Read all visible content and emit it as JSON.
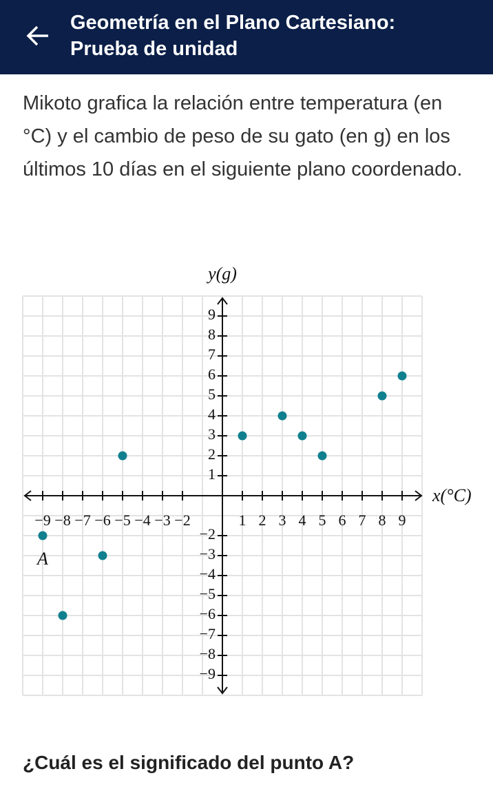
{
  "header": {
    "title": "Geometría en el Plano Cartesiano: Prueba de unidad"
  },
  "question": {
    "text": "Mikoto grafica la relación entre temperatura (en °C) y el cambio de peso de su gato (en g) en los últimos 10 días en el siguiente plano coordenado.",
    "prompt": "¿Cuál es el significado del punto A?"
  },
  "chart_data": {
    "type": "scatter",
    "xlabel": "x(°C)",
    "ylabel": "y(g)",
    "x": [
      -9,
      -8,
      -6,
      -5,
      1,
      3,
      4,
      5,
      8,
      9
    ],
    "series": [
      {
        "color": "#10808f",
        "values": [
          -2,
          -6,
          -3,
          2,
          3,
          4,
          3,
          2,
          5,
          6
        ]
      }
    ],
    "annotation": "A",
    "xlim": [
      -10,
      10
    ],
    "ylim": [
      -10,
      10
    ],
    "grid": true,
    "grid_step": 1,
    "xticks": [
      {
        "value": -9,
        "label": "−9"
      },
      {
        "value": -8,
        "label": "−8"
      },
      {
        "value": -7,
        "label": "−7"
      },
      {
        "value": -6,
        "label": "−6"
      },
      {
        "value": -5,
        "label": "−5"
      },
      {
        "value": -4,
        "label": "−4"
      },
      {
        "value": -3,
        "label": "−3"
      },
      {
        "value": -2,
        "label": "−2"
      },
      1,
      2,
      3,
      4,
      5,
      6,
      7,
      8,
      9
    ],
    "yticks": [
      {
        "value": -9,
        "label": "−9"
      },
      {
        "value": -8,
        "label": "−8"
      },
      {
        "value": -7,
        "label": "−7"
      },
      {
        "value": -6,
        "label": "−6"
      },
      {
        "value": -5,
        "label": "−5"
      },
      {
        "value": -4,
        "label": "−4"
      },
      {
        "value": -3,
        "label": "−3"
      },
      {
        "value": -2,
        "label": "−2"
      },
      1,
      2,
      3,
      4,
      5,
      6,
      7,
      8,
      9
    ]
  }
}
